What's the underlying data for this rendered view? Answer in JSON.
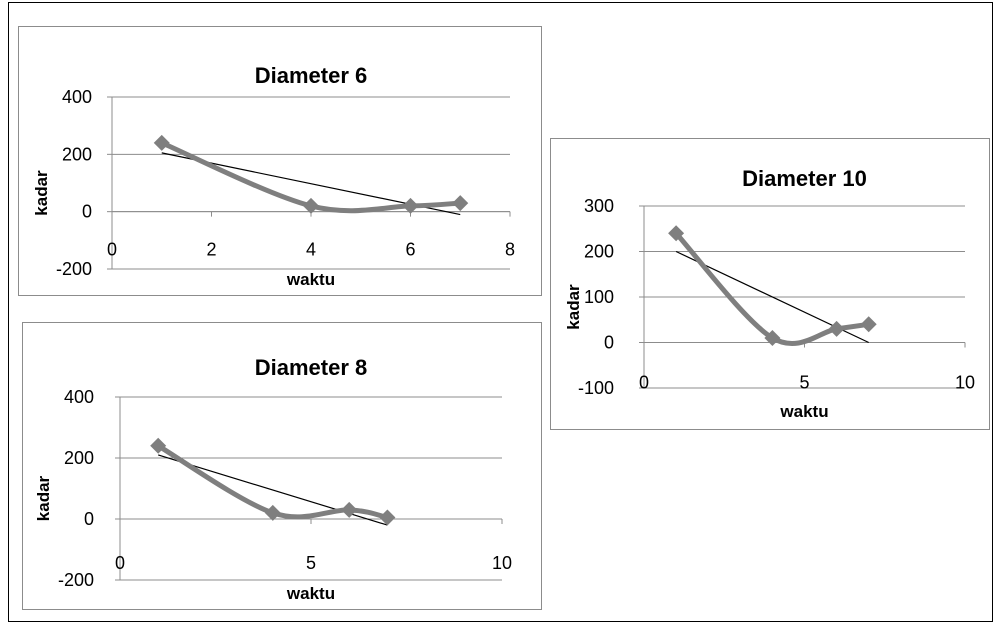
{
  "chart_data": [
    {
      "type": "scatter",
      "title": "Diameter 6",
      "xlabel": "waktu",
      "ylabel": "kadar",
      "xlim": [
        0,
        8
      ],
      "ylim": [
        -200,
        400
      ],
      "x_ticks": [
        "0",
        "2",
        "4",
        "6",
        "8"
      ],
      "y_ticks": [
        "-200",
        "0",
        "200",
        "400"
      ],
      "grid": "horizontal",
      "series": [
        {
          "x": [
            1,
            4,
            6,
            7
          ],
          "y": [
            240,
            20,
            20,
            30
          ],
          "marker": "diamond",
          "line": "smooth",
          "color": "#7f7f7f"
        }
      ],
      "trendline": {
        "x": [
          1,
          7
        ],
        "y": [
          205,
          -10
        ],
        "color": "#000000"
      }
    },
    {
      "type": "scatter",
      "title": "Diameter 8",
      "xlabel": "waktu",
      "ylabel": "kadar",
      "xlim": [
        0,
        10
      ],
      "ylim": [
        -200,
        400
      ],
      "x_ticks": [
        "0",
        "5",
        "10"
      ],
      "y_ticks": [
        "-200",
        "0",
        "200",
        "400"
      ],
      "grid": "horizontal",
      "series": [
        {
          "x": [
            1,
            4,
            6,
            7
          ],
          "y": [
            240,
            20,
            30,
            5
          ],
          "marker": "diamond",
          "line": "smooth",
          "color": "#7f7f7f"
        }
      ],
      "trendline": {
        "x": [
          1,
          7
        ],
        "y": [
          210,
          -20
        ],
        "color": "#000000"
      }
    },
    {
      "type": "scatter",
      "title": "Diameter 10",
      "xlabel": "waktu",
      "ylabel": "kadar",
      "xlim": [
        0,
        10
      ],
      "ylim": [
        -100,
        300
      ],
      "x_ticks": [
        "0",
        "5",
        "10"
      ],
      "y_ticks": [
        "-100",
        "0",
        "100",
        "200",
        "300"
      ],
      "grid": "horizontal",
      "series": [
        {
          "x": [
            1,
            4,
            6,
            7
          ],
          "y": [
            240,
            10,
            30,
            40
          ],
          "marker": "diamond",
          "line": "smooth",
          "color": "#7f7f7f"
        }
      ],
      "trendline": {
        "x": [
          1,
          7
        ],
        "y": [
          200,
          0
        ],
        "color": "#000000"
      }
    }
  ]
}
